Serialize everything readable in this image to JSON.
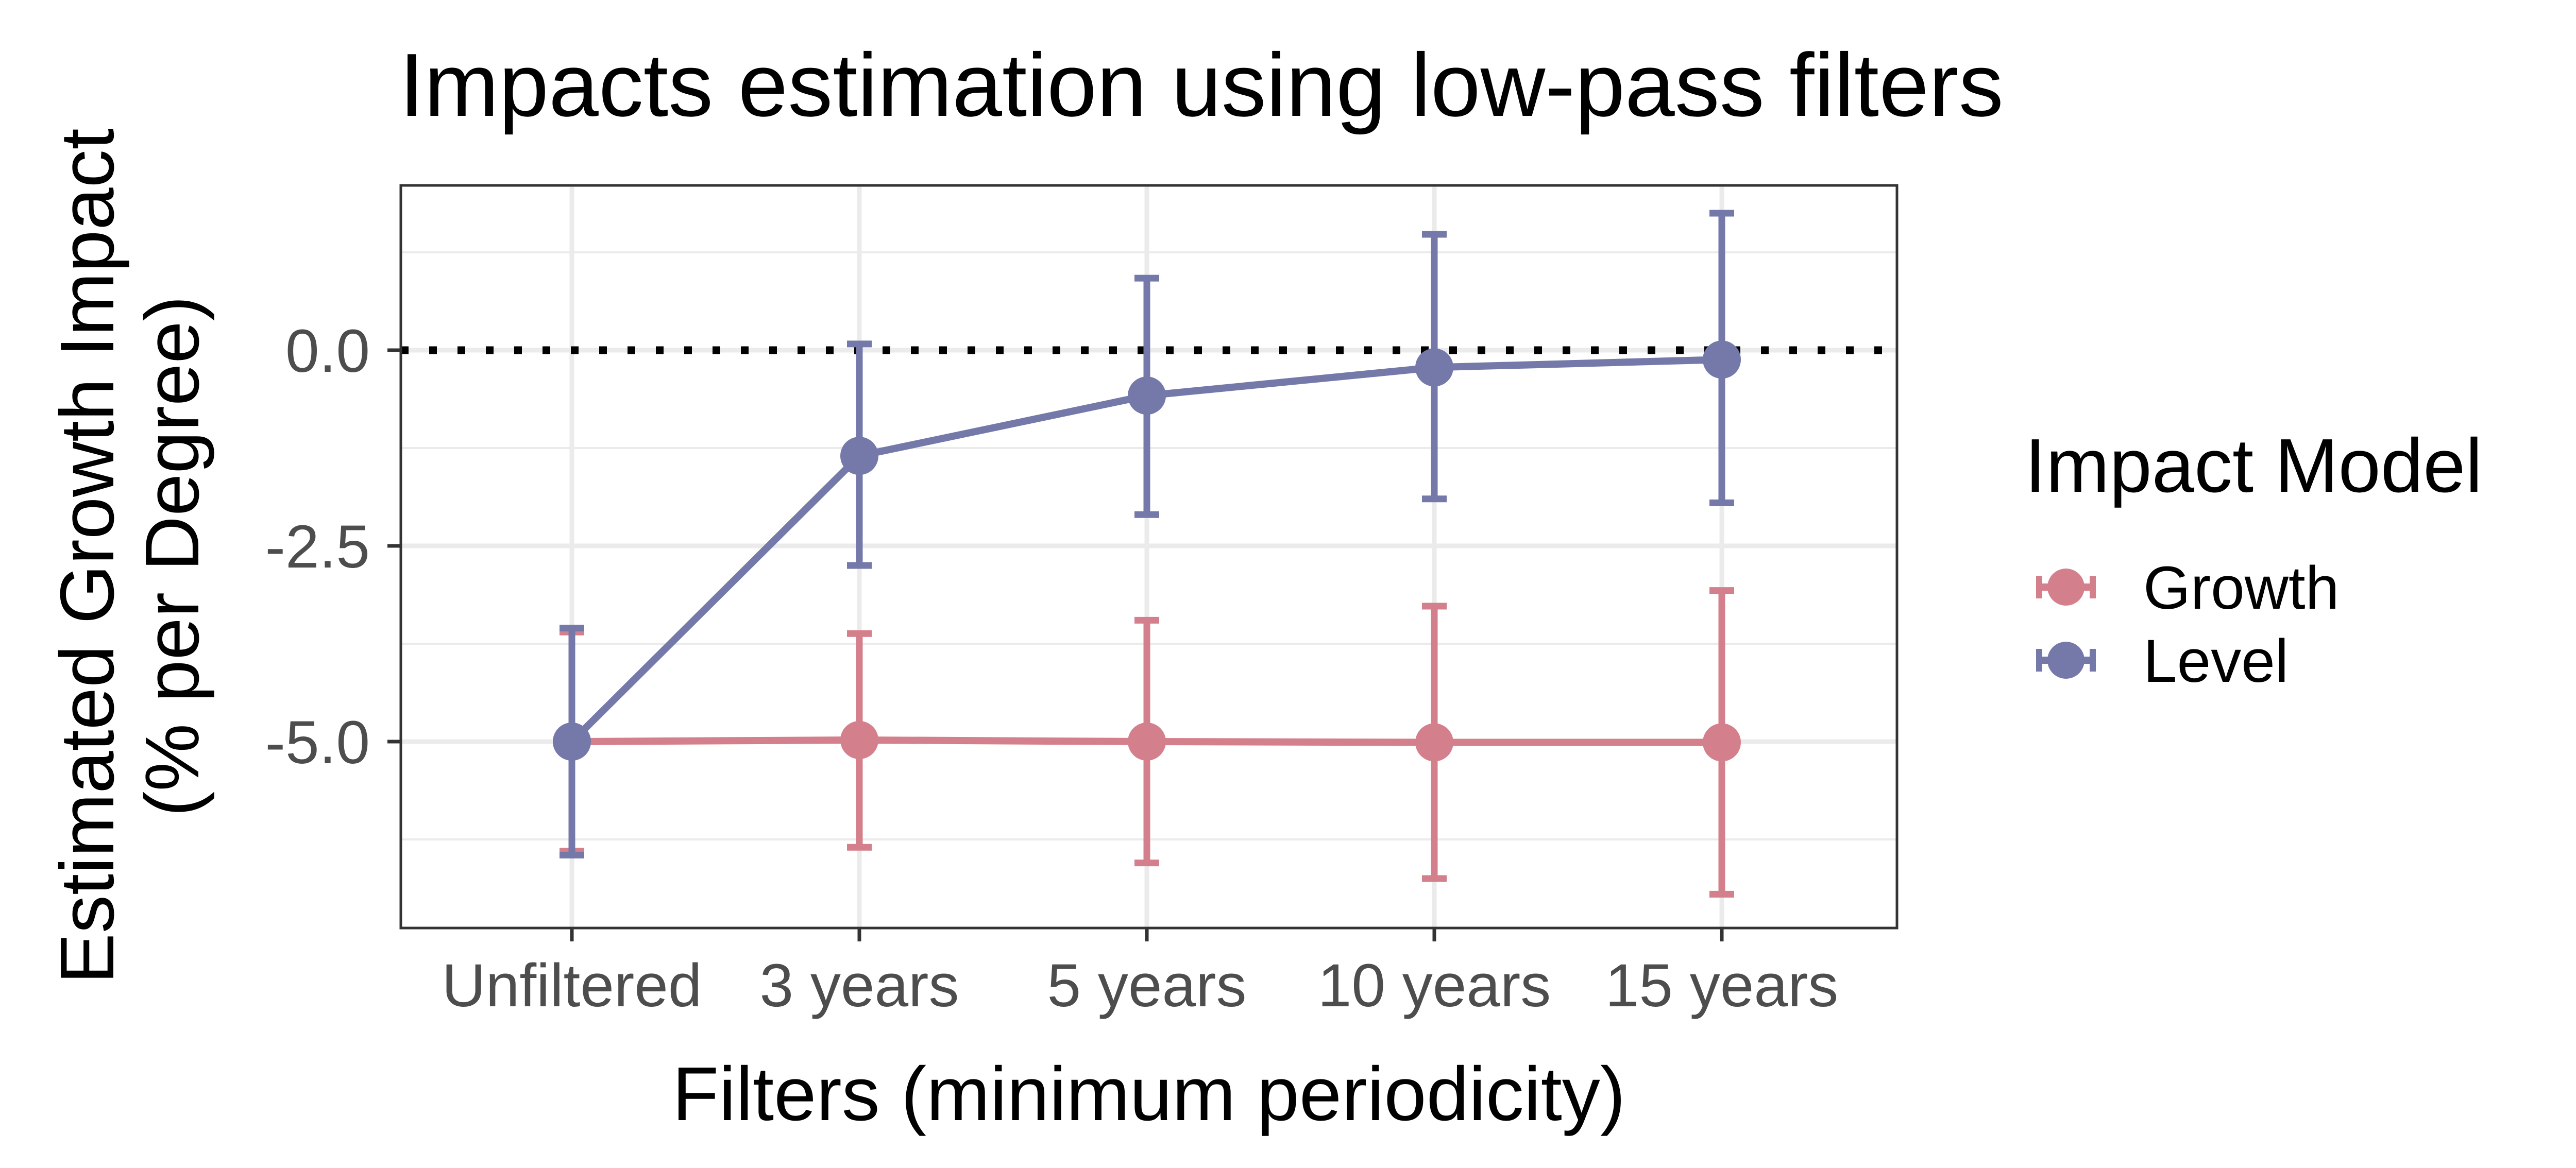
{
  "chart_data": {
    "type": "line",
    "title": "Impacts estimation using low-pass filters",
    "xlabel": "Filters (minimum periodicity)",
    "ylabel_lines": [
      "Estimated Growth Impact",
      "(% per Degree)"
    ],
    "categories": [
      "Unfiltered",
      "3 years",
      "5 years",
      "10 years",
      "15 years"
    ],
    "y_ticks": [
      0.0,
      -2.5,
      -5.0
    ],
    "y_tick_labels": [
      "0.0",
      "-2.5",
      "-5.0"
    ],
    "ylim": [
      -7.35,
      2.1
    ],
    "reference_line": {
      "y": 0,
      "style": "dotted",
      "color": "#000000"
    },
    "grid": true,
    "legend": {
      "title": "Impact Model",
      "position": "right"
    },
    "series": [
      {
        "name": "Growth",
        "color": "#d4808c",
        "values": [
          -5.0,
          -4.98,
          -5.0,
          -5.01,
          -5.01
        ],
        "lower": [
          -6.4,
          -6.35,
          -6.55,
          -6.75,
          -6.95
        ],
        "upper": [
          -3.6,
          -3.62,
          -3.45,
          -3.27,
          -3.07
        ]
      },
      {
        "name": "Level",
        "color": "#7479a9",
        "values": [
          -5.0,
          -1.35,
          -0.58,
          -0.22,
          -0.12
        ],
        "lower": [
          -6.45,
          -2.75,
          -2.1,
          -1.9,
          -1.95
        ],
        "upper": [
          -3.55,
          0.08,
          0.92,
          1.48,
          1.75
        ]
      }
    ]
  }
}
